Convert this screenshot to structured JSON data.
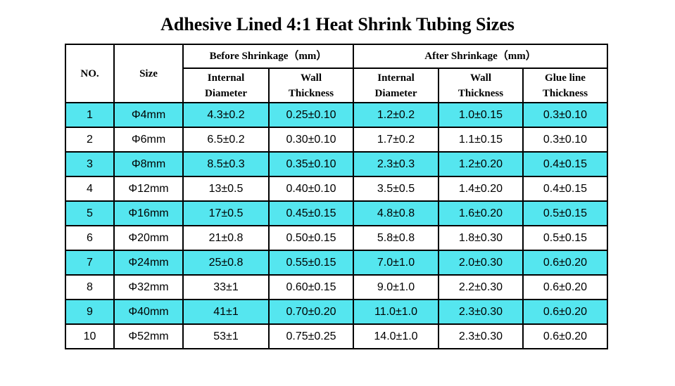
{
  "title": "Adhesive Lined 4:1 Heat Shrink Tubing Sizes",
  "table": {
    "headers": {
      "no": "NO.",
      "size": "Size",
      "before": "Before Shrinkage（mm）",
      "after": "After Shrinkage（mm）",
      "columns": [
        "Internal Diameter",
        "Wall Thickness",
        "Internal Diameter",
        "Wall Thickness",
        "Glue line Thickness"
      ]
    },
    "rows": [
      [
        "1",
        "Φ4mm",
        "4.3±0.2",
        "0.25±0.10",
        "1.2±0.2",
        "1.0±0.15",
        "0.3±0.10"
      ],
      [
        "2",
        "Φ6mm",
        "6.5±0.2",
        "0.30±0.10",
        "1.7±0.2",
        "1.1±0.15",
        "0.3±0.10"
      ],
      [
        "3",
        "Φ8mm",
        "8.5±0.3",
        "0.35±0.10",
        "2.3±0.3",
        "1.2±0.20",
        "0.4±0.15"
      ],
      [
        "4",
        "Φ12mm",
        "13±0.5",
        "0.40±0.10",
        "3.5±0.5",
        "1.4±0.20",
        "0.4±0.15"
      ],
      [
        "5",
        "Φ16mm",
        "17±0.5",
        "0.45±0.15",
        "4.8±0.8",
        "1.6±0.20",
        "0.5±0.15"
      ],
      [
        "6",
        "Φ20mm",
        "21±0.8",
        "0.50±0.15",
        "5.8±0.8",
        "1.8±0.30",
        "0.5±0.15"
      ],
      [
        "7",
        "Φ24mm",
        "25±0.8",
        "0.55±0.15",
        "7.0±1.0",
        "2.0±0.30",
        "0.6±0.20"
      ],
      [
        "8",
        "Φ32mm",
        "33±1",
        "0.60±0.15",
        "9.0±1.0",
        "2.2±0.30",
        "0.6±0.20"
      ],
      [
        "9",
        "Φ40mm",
        "41±1",
        "0.70±0.20",
        "11.0±1.0",
        "2.3±0.30",
        "0.6±0.20"
      ],
      [
        "10",
        "Φ52mm",
        "53±1",
        "0.75±0.25",
        "14.0±1.0",
        "2.3±0.30",
        "0.6±0.20"
      ]
    ]
  }
}
